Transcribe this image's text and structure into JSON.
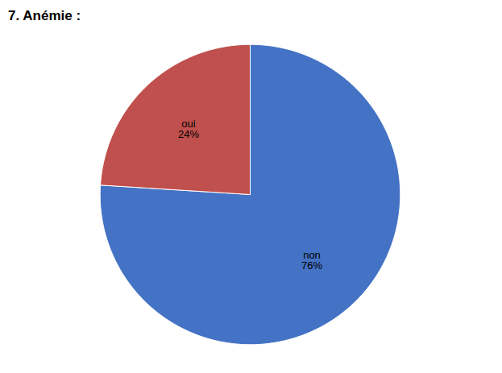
{
  "chart_data": {
    "type": "pie",
    "title": "7. Anémie :",
    "categories": [
      "non",
      "oui"
    ],
    "values": [
      76,
      24
    ],
    "value_labels": [
      "non\n76%",
      "oui\n24%"
    ],
    "colors": [
      "#4472C4",
      "#C0504D"
    ],
    "data_labels": true
  }
}
